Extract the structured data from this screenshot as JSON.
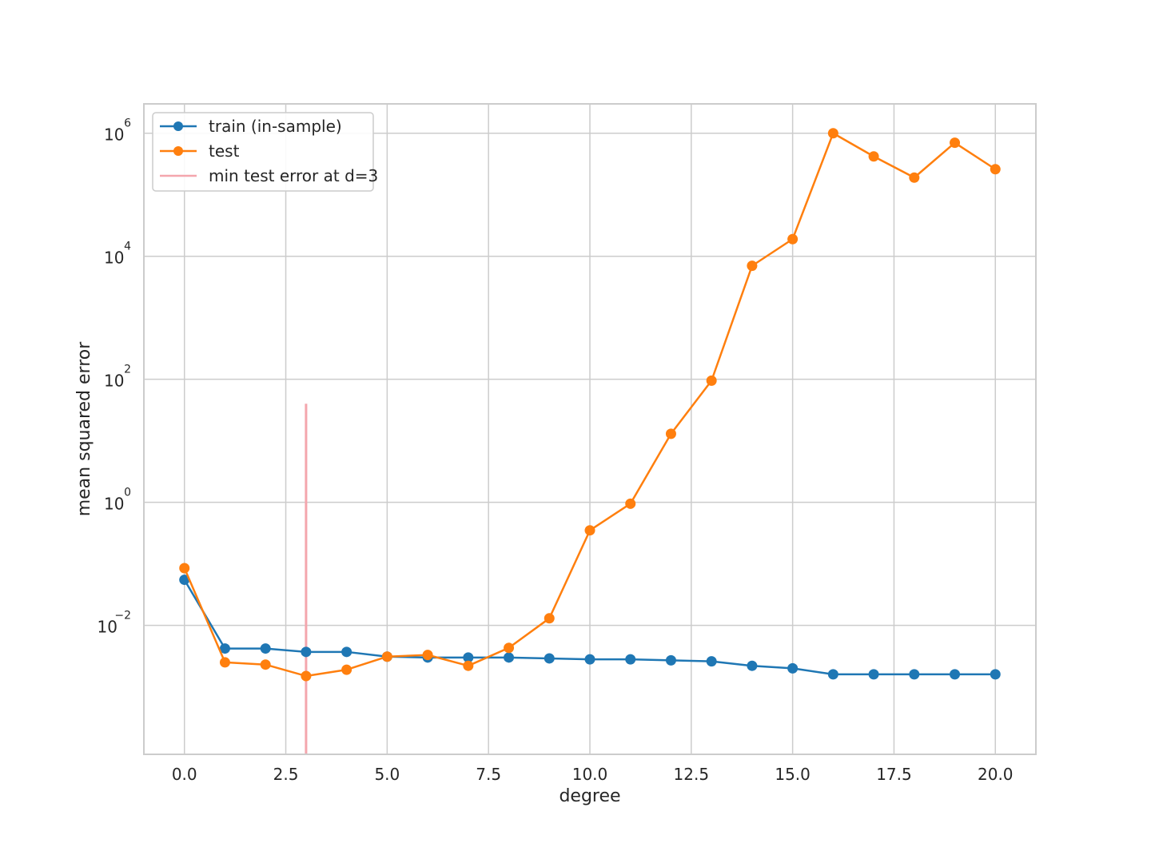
{
  "chart_data": {
    "type": "line",
    "title": "",
    "xlabel": "degree",
    "ylabel": "mean squared error",
    "yscale": "log",
    "xlim": [
      -1,
      21
    ],
    "ylim": [
      8e-05,
      3000000
    ],
    "xticks": [
      0,
      2.5,
      5,
      7.5,
      10,
      12.5,
      15,
      17.5,
      20
    ],
    "xtick_labels": [
      "0.0",
      "2.5",
      "5.0",
      "7.5",
      "10.0",
      "12.5",
      "15.0",
      "17.5",
      "20.0"
    ],
    "yticks": [
      0.01,
      1,
      100,
      10000,
      1000000
    ],
    "ytick_bases": [
      "10",
      "10",
      "10",
      "10",
      "10"
    ],
    "ytick_exponents": [
      "−2",
      "0",
      "2",
      "4",
      "6"
    ],
    "grid": true,
    "legend_position": "upper-left",
    "x": [
      0,
      1,
      2,
      3,
      4,
      5,
      6,
      7,
      8,
      9,
      10,
      11,
      12,
      13,
      14,
      15,
      16,
      17,
      18,
      19,
      20
    ],
    "series": [
      {
        "name": "train (in-sample)",
        "color": "#1f77b4",
        "values": [
          0.055,
          0.0042,
          0.0042,
          0.0037,
          0.0037,
          0.0031,
          0.003,
          0.003,
          0.003,
          0.0029,
          0.0028,
          0.0028,
          0.0027,
          0.0026,
          0.0022,
          0.002,
          0.0016,
          0.0016,
          0.0016,
          0.0016,
          0.0016
        ]
      },
      {
        "name": "test",
        "color": "#ff7f0e",
        "values": [
          0.085,
          0.0025,
          0.0023,
          0.0015,
          0.0019,
          0.0031,
          0.0033,
          0.0022,
          0.0043,
          0.013,
          0.35,
          0.95,
          13,
          95,
          7000,
          19000,
          1000000,
          420000,
          190000,
          700000,
          260000
        ]
      }
    ],
    "vline": {
      "label": "min test error at d=3",
      "x": 3,
      "ymin": 8e-05,
      "ymax": 40,
      "color": "#f4a6ad"
    }
  }
}
